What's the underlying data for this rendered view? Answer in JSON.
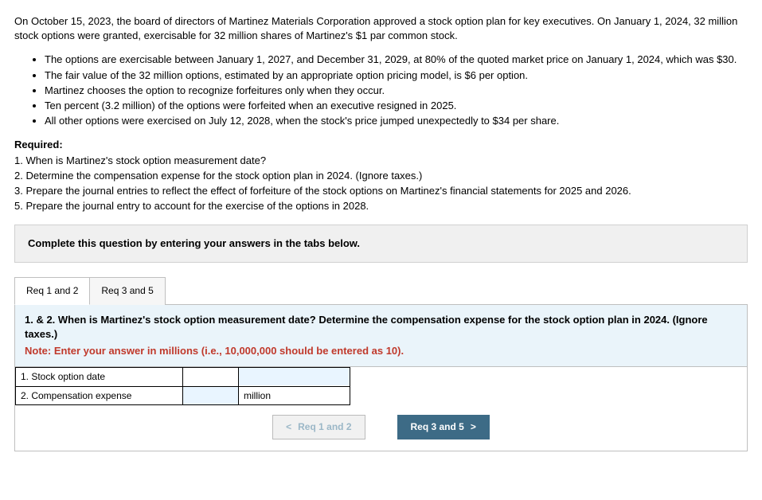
{
  "intro": "On October 15, 2023, the board of directors of Martinez Materials Corporation approved a stock option plan for key executives. On January 1, 2024, 32 million stock options were granted, exercisable for 32 million shares of Martinez's $1 par common stock.",
  "bullets": [
    "The options are exercisable between January 1, 2027, and December 31, 2029, at 80% of the quoted market price on January 1, 2024, which was $30.",
    "The fair value of the 32 million options, estimated by an appropriate option pricing model, is $6 per option.",
    "Martinez chooses the option to recognize forfeitures only when they occur.",
    "Ten percent (3.2 million) of the options were forfeited when an executive resigned in 2025.",
    "All other options were exercised on July 12, 2028, when the stock's price jumped unexpectedly to $34 per share."
  ],
  "required_label": "Required:",
  "required_items": [
    "1. When is Martinez's stock option measurement date?",
    "2. Determine the compensation expense for the stock option plan in 2024. (Ignore taxes.)",
    "3. Prepare the journal entries to reflect the effect of forfeiture of the stock options on Martinez's financial statements for 2025 and 2026.",
    "5. Prepare the journal entry to account for the exercise of the options in 2028."
  ],
  "instruction": "Complete this question by entering your answers in the tabs below.",
  "tabs": [
    {
      "label": "Req 1 and 2",
      "active": true
    },
    {
      "label": "Req 3 and 5",
      "active": false
    }
  ],
  "prompt_main": "1. & 2. When is Martinez's stock option measurement date? Determine the compensation expense for the stock option plan in 2024. (Ignore taxes.)",
  "prompt_note": "Note: Enter your answer in millions (i.e., 10,000,000 should be entered as 10).",
  "answer_rows": [
    {
      "label": "1. Stock option date",
      "has_narrow_input": false,
      "unit": ""
    },
    {
      "label": "2. Compensation expense",
      "has_narrow_input": true,
      "unit": "million"
    }
  ],
  "nav": {
    "prev": "Req 1 and 2",
    "next": "Req 3 and 5"
  },
  "colors": {
    "instruction_bg": "#f0f0f0",
    "prompt_bg": "#eaf4fa",
    "note_color": "#c0392b",
    "primary_btn": "#3d6b86",
    "input_bg": "#e9f5ff"
  }
}
